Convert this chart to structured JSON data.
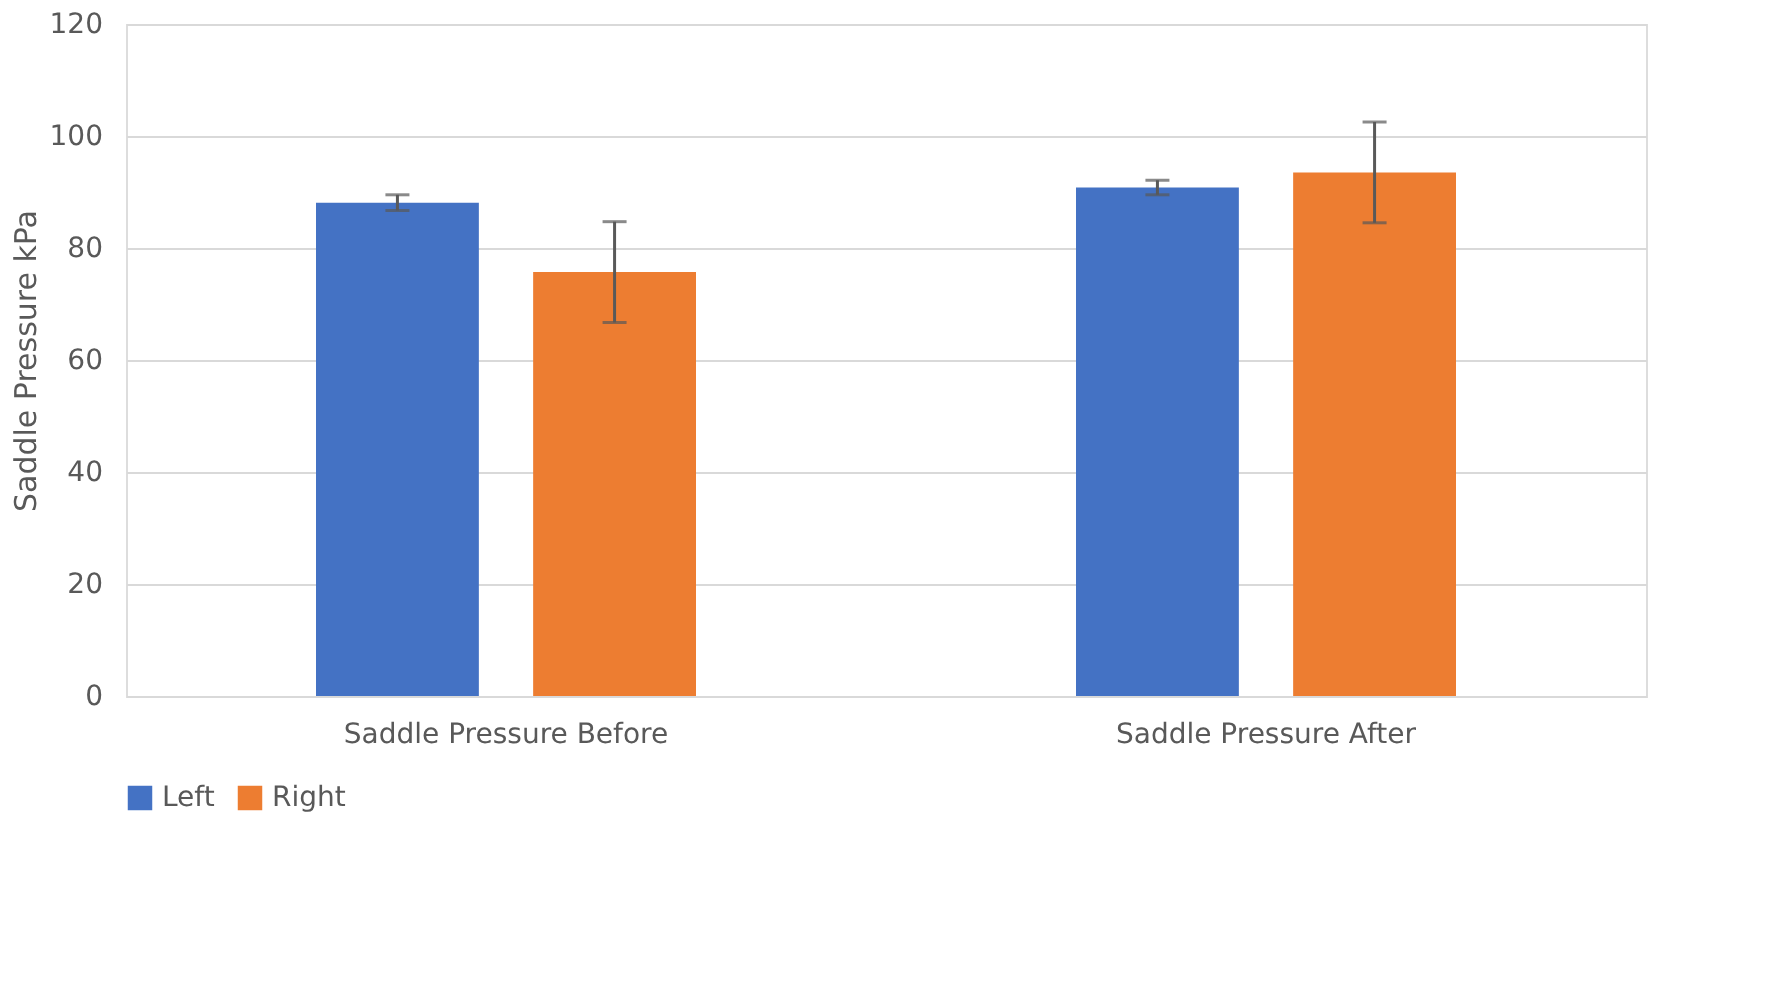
{
  "chart_data": {
    "type": "bar",
    "ylabel": "Saddle Pressure kPa",
    "categories": [
      "Saddle Pressure Before",
      "Saddle Pressure After"
    ],
    "series": [
      {
        "name": "Left",
        "color": "#4472c4",
        "values": [
          88.1,
          90.8
        ],
        "errors": [
          1.4,
          1.3
        ]
      },
      {
        "name": "Right",
        "color": "#ed7d31",
        "values": [
          75.7,
          93.5
        ],
        "errors": [
          9,
          9
        ]
      }
    ],
    "ylim": [
      0,
      120
    ],
    "yticks": [
      0,
      20,
      40,
      60,
      80,
      100,
      120
    ],
    "grid": "y",
    "legend": "bottom"
  }
}
